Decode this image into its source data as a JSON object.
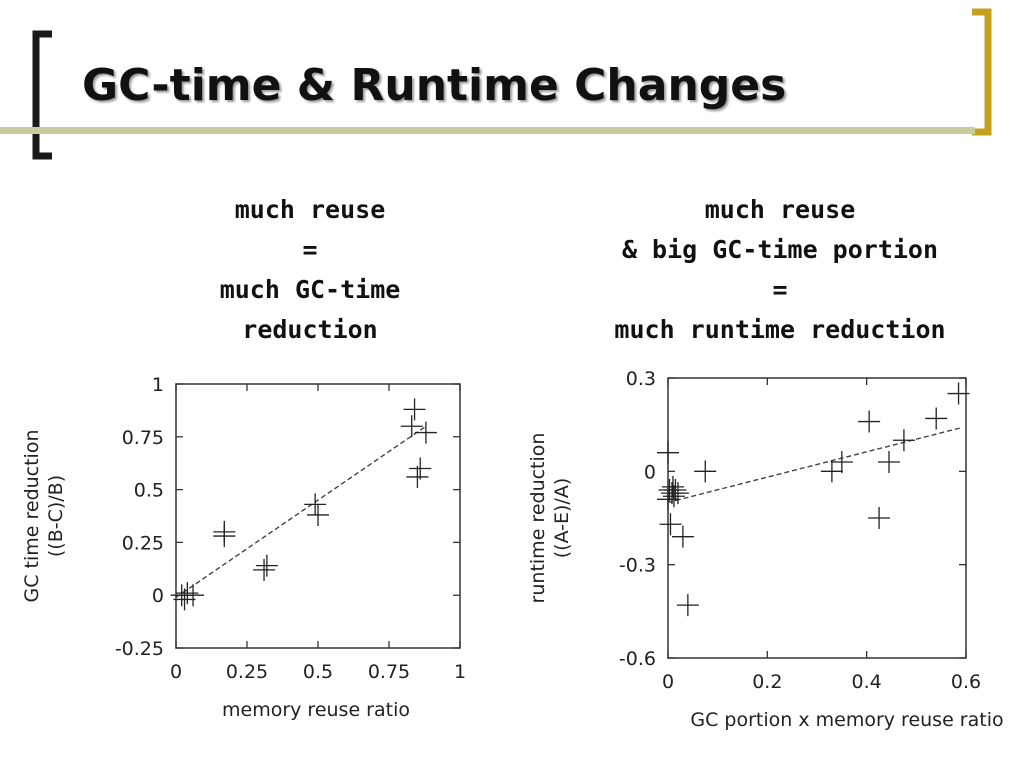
{
  "slide": {
    "title": "GC-time & Runtime Changes",
    "colors": {
      "bracket_dark": "#1a1a1a",
      "bracket_gold": "#c8a020",
      "divider": "#c9cc9e"
    }
  },
  "captions": {
    "left": [
      "much reuse",
      "=",
      "much GC-time",
      "reduction"
    ],
    "right": [
      "much reuse",
      "& big GC-time portion",
      "=",
      "much runtime reduction"
    ]
  },
  "chart_data": [
    {
      "type": "scatter",
      "ylabel_lines": [
        "GC time reduction",
        "((B-C)/B)"
      ],
      "xlabel": "memory reuse ratio",
      "xlim": [
        0,
        1
      ],
      "ylim": [
        -0.25,
        1
      ],
      "xticks": [
        {
          "v": 0,
          "label": "0"
        },
        {
          "v": 0.25,
          "label": "0.25"
        },
        {
          "v": 0.5,
          "label": "0.5"
        },
        {
          "v": 0.75,
          "label": "0.75"
        },
        {
          "v": 1,
          "label": "1"
        }
      ],
      "yticks": [
        {
          "v": -0.25,
          "label": "-0.25"
        },
        {
          "v": 0,
          "label": "0"
        },
        {
          "v": 0.25,
          "label": "0.25"
        },
        {
          "v": 0.5,
          "label": "0.5"
        },
        {
          "v": 0.75,
          "label": "0.75"
        },
        {
          "v": 1,
          "label": "1"
        }
      ],
      "points": [
        {
          "x": 0.02,
          "y": 0.0
        },
        {
          "x": 0.03,
          "y": -0.02
        },
        {
          "x": 0.04,
          "y": 0.01
        },
        {
          "x": 0.06,
          "y": 0.0
        },
        {
          "x": 0.17,
          "y": 0.3
        },
        {
          "x": 0.17,
          "y": 0.28
        },
        {
          "x": 0.31,
          "y": 0.12
        },
        {
          "x": 0.32,
          "y": 0.14
        },
        {
          "x": 0.49,
          "y": 0.43
        },
        {
          "x": 0.5,
          "y": 0.38
        },
        {
          "x": 0.83,
          "y": 0.8
        },
        {
          "x": 0.84,
          "y": 0.88
        },
        {
          "x": 0.85,
          "y": 0.56
        },
        {
          "x": 0.86,
          "y": 0.6
        },
        {
          "x": 0.88,
          "y": 0.77
        }
      ],
      "trend": [
        [
          0,
          -0.01
        ],
        [
          0.88,
          0.8
        ]
      ]
    },
    {
      "type": "scatter",
      "ylabel_lines": [
        "runtime reduction",
        "((A-E)/A)"
      ],
      "xlabel": "GC portion x memory reuse ratio",
      "xlim": [
        0,
        0.6
      ],
      "ylim": [
        -0.6,
        0.3
      ],
      "xticks": [
        {
          "v": 0,
          "label": "0"
        },
        {
          "v": 0.2,
          "label": "0.2"
        },
        {
          "v": 0.4,
          "label": "0.4"
        },
        {
          "v": 0.6,
          "label": "0.6"
        }
      ],
      "yticks": [
        {
          "v": -0.6,
          "label": "-0.6"
        },
        {
          "v": -0.3,
          "label": "-0.3"
        },
        {
          "v": 0,
          "label": "0"
        },
        {
          "v": 0.3,
          "label": "0.3"
        }
      ],
      "points": [
        {
          "x": 0.0,
          "y": 0.06
        },
        {
          "x": 0.0,
          "y": -0.09
        },
        {
          "x": 0.003,
          "y": -0.06
        },
        {
          "x": 0.005,
          "y": -0.17
        },
        {
          "x": 0.008,
          "y": -0.07
        },
        {
          "x": 0.01,
          "y": -0.05
        },
        {
          "x": 0.012,
          "y": -0.08
        },
        {
          "x": 0.015,
          "y": -0.06
        },
        {
          "x": 0.02,
          "y": -0.07
        },
        {
          "x": 0.03,
          "y": -0.21
        },
        {
          "x": 0.04,
          "y": -0.43
        },
        {
          "x": 0.075,
          "y": 0.0
        },
        {
          "x": 0.33,
          "y": 0.0
        },
        {
          "x": 0.35,
          "y": 0.03
        },
        {
          "x": 0.405,
          "y": 0.16
        },
        {
          "x": 0.425,
          "y": -0.15
        },
        {
          "x": 0.445,
          "y": 0.03
        },
        {
          "x": 0.475,
          "y": 0.1
        },
        {
          "x": 0.54,
          "y": 0.17
        },
        {
          "x": 0.585,
          "y": 0.25
        }
      ],
      "trend": [
        [
          0,
          -0.1
        ],
        [
          0.59,
          0.14
        ]
      ]
    }
  ]
}
